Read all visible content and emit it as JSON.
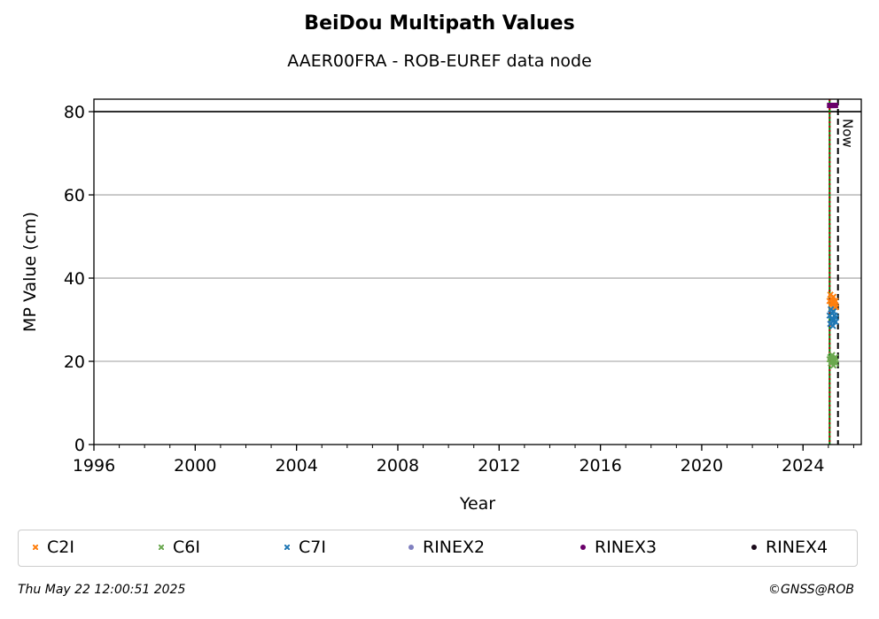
{
  "chart_data": {
    "type": "scatter",
    "title": "BeiDou Multipath Values",
    "subtitle": "AAER00FRA - ROB-EUREF data node",
    "xlabel": "Year",
    "ylabel": "MP Value (cm)",
    "xlim": [
      1996,
      2026.3
    ],
    "ylim": [
      0,
      83
    ],
    "xticks": [
      "1996",
      "2000",
      "2004",
      "2008",
      "2012",
      "2016",
      "2020",
      "2024"
    ],
    "yticks": [
      "0",
      "20",
      "40",
      "60",
      "80"
    ],
    "grid": "horizontal",
    "reference_lines": [
      {
        "axis": "y",
        "value": 80,
        "color": "#000000",
        "style": "solid"
      },
      {
        "axis": "x",
        "value": 2025.05,
        "color": "#008000",
        "style": "solid"
      },
      {
        "axis": "x",
        "value": 2025.05,
        "color": "#c00000",
        "style": "dotted"
      },
      {
        "axis": "x",
        "value": 2025.38,
        "color": "#000000",
        "style": "dashed",
        "label": "Now"
      }
    ],
    "series": [
      {
        "name": "C2I",
        "color": "#ff7f0e",
        "marker": "x",
        "x": [
          2025.05,
          2025.08,
          2025.1,
          2025.13,
          2025.15,
          2025.18,
          2025.2,
          2025.23,
          2025.25,
          2025.28,
          2025.3
        ],
        "y": [
          34.5,
          36,
          33.5,
          35,
          34,
          33,
          35.5,
          34,
          33.5,
          34.5,
          33
        ]
      },
      {
        "name": "C6I",
        "color": "#6aa84f",
        "marker": "x",
        "x": [
          2025.05,
          2025.08,
          2025.1,
          2025.13,
          2025.15,
          2025.18,
          2025.2,
          2025.23,
          2025.25,
          2025.28,
          2025.3
        ],
        "y": [
          20.5,
          21,
          19.5,
          20,
          21.5,
          20,
          19,
          20.5,
          20,
          21,
          19.5
        ]
      },
      {
        "name": "C7I",
        "color": "#1f77b4",
        "marker": "x",
        "x": [
          2025.05,
          2025.08,
          2025.1,
          2025.13,
          2025.15,
          2025.18,
          2025.2,
          2025.23,
          2025.25,
          2025.28,
          2025.3
        ],
        "y": [
          31,
          29,
          32.5,
          30,
          31.5,
          28.5,
          32,
          30,
          31,
          29.5,
          30.5
        ]
      },
      {
        "name": "RINEX2",
        "color": "#8080c0",
        "marker": "dot",
        "x": [],
        "y": []
      },
      {
        "name": "RINEX3",
        "color": "#6a006a",
        "marker": "dot",
        "x": [
          2025.05,
          2025.08,
          2025.12,
          2025.16,
          2025.2,
          2025.24,
          2025.28
        ],
        "y": [
          81.5,
          81.5,
          81.5,
          81.5,
          81.5,
          81.5,
          81.5
        ]
      },
      {
        "name": "RINEX4",
        "color": "#1a0a1a",
        "marker": "dot",
        "x": [],
        "y": []
      }
    ]
  },
  "footer": {
    "timestamp": "Thu May 22 12:00:51 2025",
    "credit": "©GNSS@ROB"
  }
}
